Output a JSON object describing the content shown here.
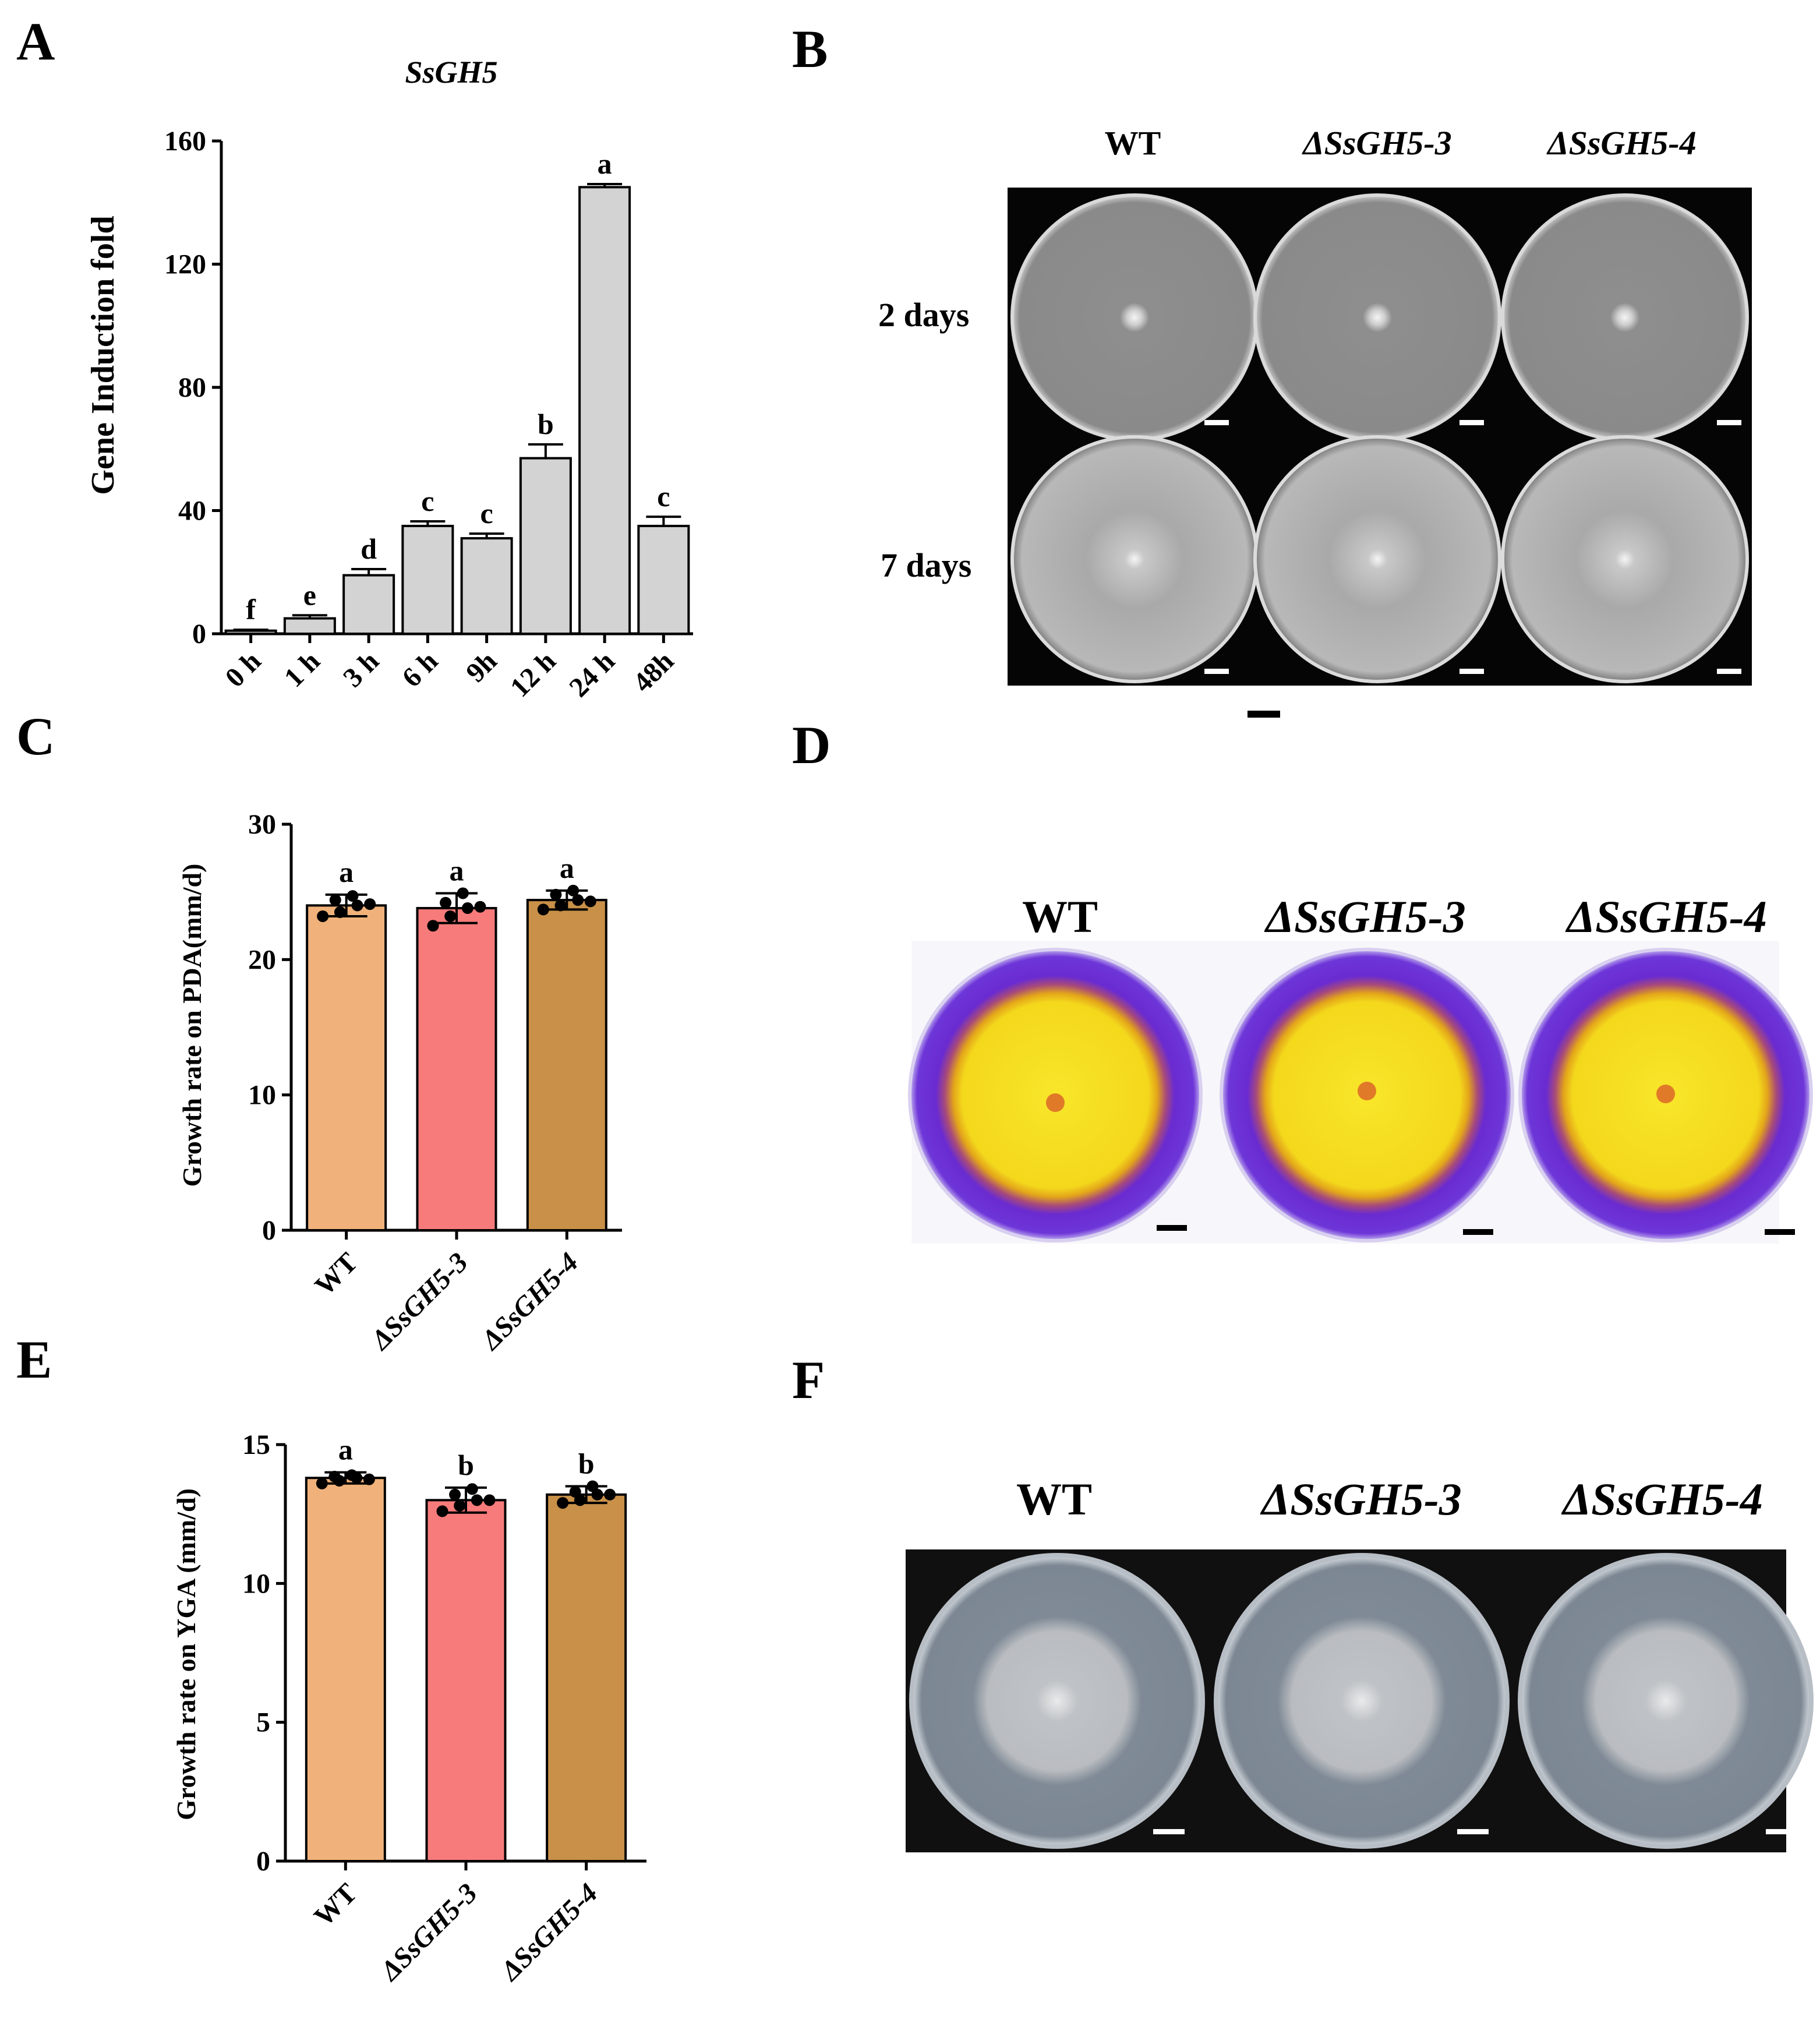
{
  "panels": {
    "A": "A",
    "B": "B",
    "C": "C",
    "D": "D",
    "E": "E",
    "F": "F"
  },
  "chart_data": [
    {
      "id": "A",
      "type": "bar",
      "title": "SsGH5",
      "ylabel": "Gene Induction fold",
      "xlabel": "",
      "categories": [
        "0 h",
        "1 h",
        "3 h",
        "6 h",
        "9h",
        "12 h",
        "24 h",
        "48h"
      ],
      "values": [
        1,
        5,
        19,
        35,
        31,
        57,
        145,
        35
      ],
      "errors": [
        0.3,
        1,
        2,
        1.5,
        1.5,
        4.5,
        1,
        3
      ],
      "letters": [
        "f",
        "e",
        "d",
        "c",
        "c",
        "b",
        "a",
        "c"
      ],
      "ylim": [
        0,
        160
      ],
      "yticks": [
        0,
        40,
        80,
        120,
        160
      ],
      "colors": [
        "#d3d3d3"
      ]
    },
    {
      "id": "C",
      "type": "bar",
      "title": "",
      "ylabel": "Growth rate on PDA(mm/d)",
      "xlabel": "",
      "categories": [
        "WT",
        "ΔSsGH5-3",
        "ΔSsGH5-4"
      ],
      "values": [
        24.0,
        23.8,
        24.4
      ],
      "errors": [
        0.8,
        1.1,
        0.7
      ],
      "letters": [
        "a",
        "a",
        "a"
      ],
      "points": [
        [
          23.2,
          23.5,
          24.0,
          24.4,
          24.7,
          24.1
        ],
        [
          22.5,
          23.2,
          23.8,
          24.2,
          24.9,
          23.9
        ],
        [
          23.7,
          24.0,
          24.4,
          24.8,
          25.1,
          24.3
        ]
      ],
      "ylim": [
        0,
        30
      ],
      "yticks": [
        0,
        10,
        20,
        30
      ],
      "colors": [
        "#f0b27a",
        "#f87b7b",
        "#c89048"
      ]
    },
    {
      "id": "E",
      "type": "bar",
      "title": "",
      "ylabel": "Growth rate on YGA (mm/d)",
      "xlabel": "",
      "categories": [
        "WT",
        "ΔSsGH5-3",
        "ΔSsGH5-4"
      ],
      "values": [
        13.8,
        13.0,
        13.2
      ],
      "errors": [
        0.2,
        0.45,
        0.3
      ],
      "letters": [
        "a",
        "b",
        "b"
      ],
      "points": [
        [
          13.6,
          13.7,
          13.8,
          13.85,
          13.9,
          13.75
        ],
        [
          12.6,
          12.8,
          13.0,
          13.2,
          13.4,
          13.0
        ],
        [
          12.9,
          13.0,
          13.2,
          13.3,
          13.5,
          13.2
        ]
      ],
      "ylim": [
        0,
        15
      ],
      "yticks": [
        0,
        5,
        10,
        15
      ],
      "colors": [
        "#f0b27a",
        "#f87b7b",
        "#c89048"
      ]
    }
  ],
  "photos": {
    "B": {
      "columns": [
        "WT",
        "ΔSsGH5-3",
        "ΔSsGH5-4"
      ],
      "rows": [
        "2 days",
        "7 days"
      ]
    },
    "D": {
      "columns": [
        "WT",
        "ΔSsGH5-3",
        "ΔSsGH5-4"
      ]
    },
    "F": {
      "columns": [
        "WT",
        "ΔSsGH5-3",
        "ΔSsGH5-4"
      ]
    }
  }
}
